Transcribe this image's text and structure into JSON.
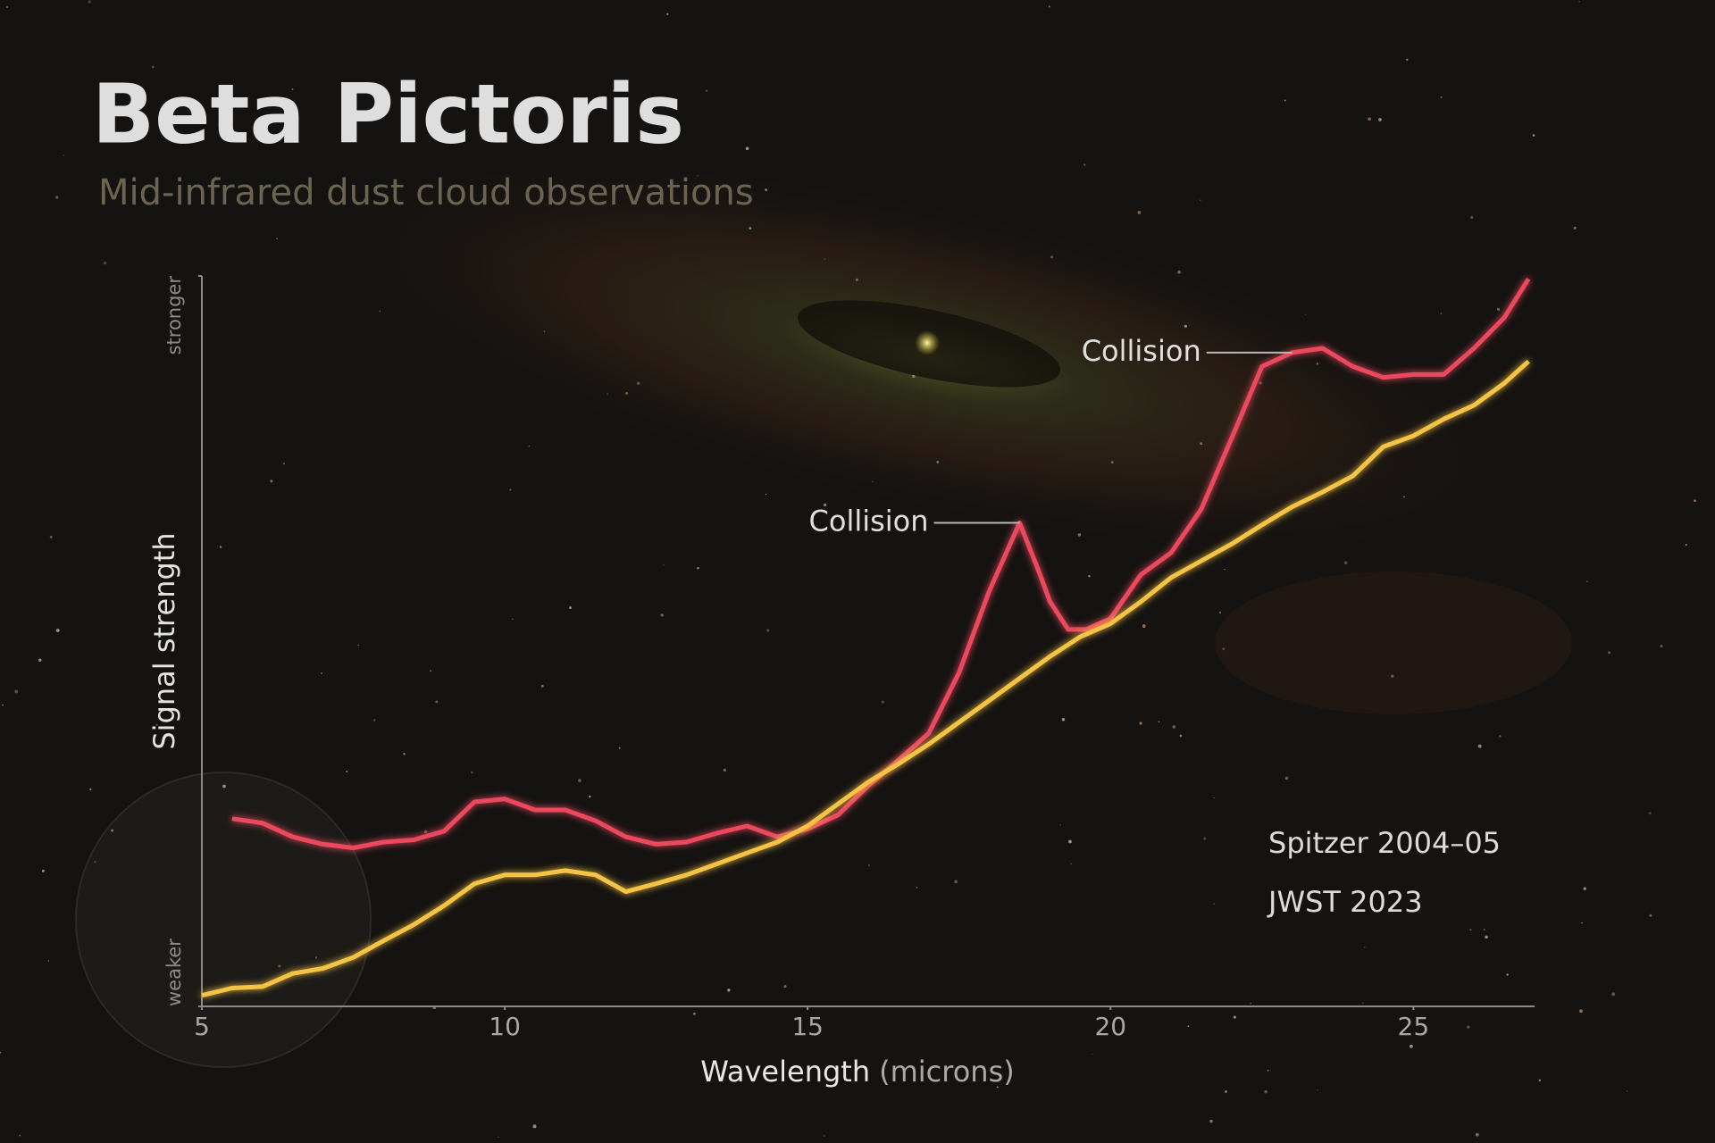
{
  "chart_data": {
    "type": "line",
    "title": "Beta Pictoris",
    "subtitle": "Mid-infrared dust cloud observations",
    "x_label": "Wavelength",
    "x_unit": "(microns)",
    "y_label": "Signal strength",
    "xlim": [
      5,
      27
    ],
    "xticks": [
      5,
      10,
      15,
      20,
      25
    ],
    "ylim": [
      0,
      100
    ],
    "yticks": [
      {
        "value": 0,
        "label": "weaker"
      },
      {
        "value": 100,
        "label": "stronger"
      }
    ],
    "grid": false,
    "legend": "lower right",
    "series": [
      {
        "name": "Spitzer 2004–05",
        "color": "#ec4a5e",
        "x": [
          5.5,
          6.0,
          6.5,
          7.0,
          7.5,
          8.0,
          8.5,
          9.0,
          9.5,
          10.0,
          10.5,
          11.0,
          11.5,
          12.0,
          12.5,
          13.0,
          13.5,
          14.0,
          14.5,
          15.0,
          15.5,
          16.0,
          16.5,
          17.0,
          17.5,
          18.0,
          18.5,
          18.8,
          19.0,
          19.3,
          19.6,
          20.0,
          20.5,
          21.0,
          21.5,
          22.0,
          22.5,
          23.0,
          23.5,
          24.0,
          24.5,
          25.0,
          25.5,
          26.0,
          26.5,
          26.9
        ],
        "values": [
          25.7,
          25.1,
          23.2,
          22.2,
          21.7,
          22.5,
          22.8,
          24.0,
          28.0,
          28.4,
          26.9,
          26.9,
          25.4,
          23.2,
          22.2,
          22.5,
          23.7,
          24.7,
          23.2,
          24.3,
          26.2,
          30.2,
          33.7,
          37.4,
          45.7,
          56.9,
          66.2,
          59.9,
          55.4,
          51.6,
          51.6,
          53.1,
          59.1,
          62.1,
          68.1,
          77.8,
          87.6,
          89.5,
          90.1,
          87.6,
          86.1,
          86.5,
          86.5,
          90.1,
          94.3,
          99.6
        ]
      },
      {
        "name": "JWST 2023",
        "color": "#f6c445",
        "x": [
          5.0,
          5.5,
          6.0,
          6.5,
          7.0,
          7.5,
          8.0,
          8.5,
          9.0,
          9.5,
          10.0,
          10.5,
          11.0,
          11.5,
          12.0,
          12.5,
          13.0,
          13.5,
          14.0,
          14.5,
          15.0,
          15.5,
          16.0,
          16.5,
          17.0,
          17.5,
          18.0,
          18.5,
          19.0,
          19.5,
          20.0,
          20.5,
          21.0,
          21.5,
          22.0,
          22.5,
          23.0,
          23.5,
          24.0,
          24.5,
          25.0,
          25.5,
          26.0,
          26.5,
          26.9
        ],
        "values": [
          1.5,
          2.5,
          2.7,
          4.5,
          5.2,
          6.7,
          9.0,
          11.2,
          13.8,
          16.8,
          18.0,
          18.0,
          18.6,
          18.0,
          15.7,
          16.8,
          18.0,
          19.5,
          21.0,
          22.5,
          24.7,
          27.7,
          30.7,
          33.2,
          35.9,
          38.9,
          41.9,
          44.9,
          47.9,
          50.6,
          52.4,
          55.4,
          58.7,
          61.0,
          63.3,
          65.9,
          68.4,
          70.4,
          72.6,
          76.6,
          78.1,
          80.4,
          82.3,
          85.3,
          88.3
        ]
      }
    ],
    "annotations": [
      {
        "text": "Collision",
        "x": 18.5,
        "y": 66.2
      },
      {
        "text": "Collision",
        "x": 23.0,
        "y": 89.5
      }
    ]
  }
}
